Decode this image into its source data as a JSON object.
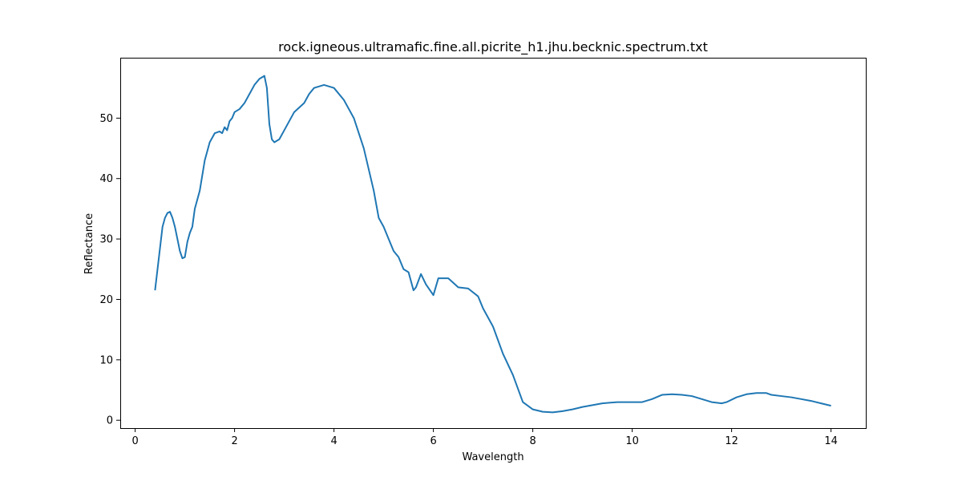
{
  "chart_data": {
    "type": "line",
    "title": "rock.igneous.ultramafic.fine.all.picrite_h1.jhu.becknic.spectrum.txt",
    "xlabel": "Wavelength",
    "ylabel": "Reflectance",
    "xlim": [
      -0.3,
      14.7
    ],
    "ylim": [
      -1.3,
      60.0
    ],
    "xticks": [
      0,
      2,
      4,
      6,
      8,
      10,
      12,
      14
    ],
    "yticks": [
      0,
      10,
      20,
      30,
      40,
      50
    ],
    "grid": false,
    "legend": "none",
    "line_color": "#1f77b4",
    "series": [
      {
        "x": [
          0.4,
          0.45,
          0.5,
          0.55,
          0.6,
          0.65,
          0.7,
          0.75,
          0.8,
          0.85,
          0.9,
          0.95,
          1.0,
          1.05,
          1.1,
          1.15,
          1.2,
          1.3,
          1.4,
          1.5,
          1.6,
          1.7,
          1.75,
          1.8,
          1.85,
          1.9,
          1.95,
          2.0,
          2.1,
          2.2,
          2.3,
          2.4,
          2.5,
          2.6,
          2.65,
          2.7,
          2.75,
          2.8,
          2.9,
          3.0,
          3.2,
          3.4,
          3.5,
          3.6,
          3.8,
          4.0,
          4.2,
          4.4,
          4.6,
          4.8,
          4.9,
          5.0,
          5.1,
          5.2,
          5.3,
          5.4,
          5.5,
          5.6,
          5.65,
          5.75,
          5.85,
          6.0,
          6.1,
          6.3,
          6.5,
          6.7,
          6.9,
          7.0,
          7.2,
          7.4,
          7.6,
          7.8,
          8.0,
          8.2,
          8.4,
          8.6,
          8.8,
          9.0,
          9.2,
          9.4,
          9.7,
          10.0,
          10.2,
          10.4,
          10.6,
          10.8,
          11.0,
          11.2,
          11.4,
          11.6,
          11.8,
          11.9,
          12.1,
          12.3,
          12.5,
          12.7,
          12.8,
          13.0,
          13.2,
          13.4,
          13.6,
          13.8,
          14.0
        ],
        "y": [
          21.5,
          25.0,
          28.5,
          32.0,
          33.5,
          34.3,
          34.5,
          33.5,
          32.0,
          30.0,
          28.0,
          26.8,
          27.0,
          29.5,
          31.0,
          32.0,
          35.0,
          38.0,
          43.0,
          46.0,
          47.5,
          47.8,
          47.5,
          48.5,
          48.0,
          49.5,
          50.0,
          51.0,
          51.5,
          52.5,
          54.0,
          55.5,
          56.5,
          57.0,
          55.0,
          49.0,
          46.5,
          46.0,
          46.5,
          48.0,
          51.0,
          52.5,
          54.0,
          55.0,
          55.5,
          55.0,
          53.0,
          50.0,
          45.0,
          38.0,
          33.5,
          32.0,
          30.0,
          28.0,
          27.0,
          25.0,
          24.5,
          21.5,
          22.0,
          24.2,
          22.5,
          20.7,
          23.5,
          23.5,
          22.0,
          21.8,
          20.5,
          18.5,
          15.5,
          11.0,
          7.5,
          3.0,
          1.8,
          1.4,
          1.3,
          1.5,
          1.8,
          2.2,
          2.5,
          2.8,
          3.0,
          3.0,
          3.0,
          3.5,
          4.2,
          4.3,
          4.2,
          4.0,
          3.5,
          3.0,
          2.8,
          3.0,
          3.8,
          4.3,
          4.5,
          4.5,
          4.2,
          4.0,
          3.8,
          3.5,
          3.2,
          2.8,
          2.4
        ]
      }
    ]
  }
}
